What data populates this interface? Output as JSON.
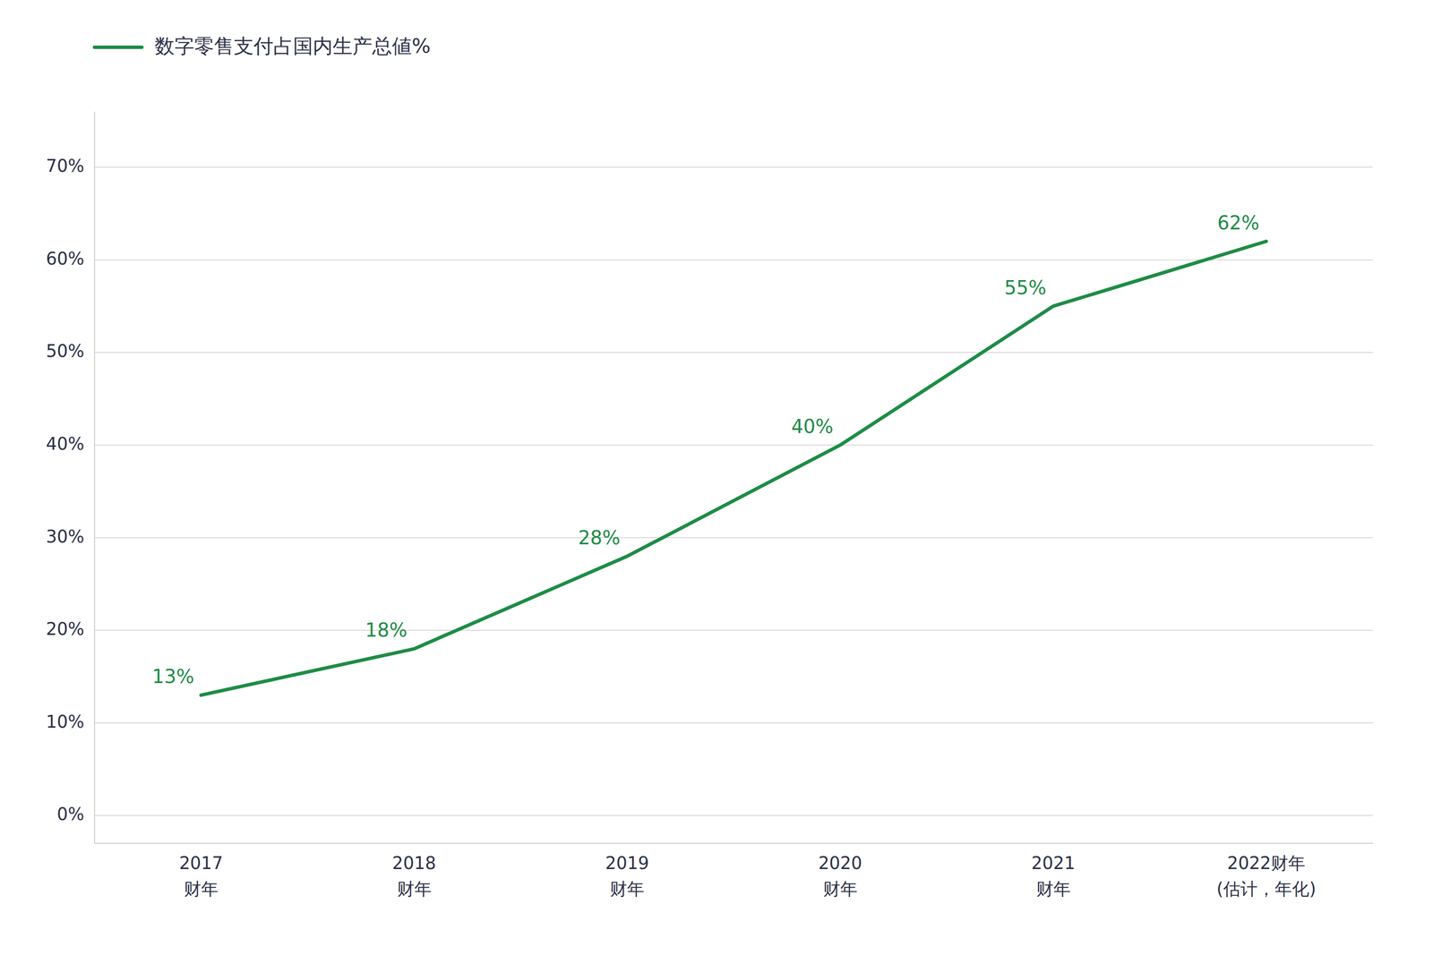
{
  "chart_data": {
    "type": "line",
    "categories": [
      "2017\n财年",
      "2018\n财年",
      "2019\n财年",
      "2020\n财年",
      "2021\n财年",
      "2022财年\n(估计，年化)"
    ],
    "series": [
      {
        "name": "数字零售支付占国内生产总値%",
        "color": "#1e8c46",
        "values": [
          13,
          18,
          28,
          40,
          55,
          62
        ],
        "value_labels": [
          "13%",
          "18%",
          "28%",
          "40%",
          "55%",
          "62%"
        ]
      }
    ],
    "ylim": [
      -3,
      76
    ],
    "yticks": [
      {
        "value": 0,
        "label": "0%"
      },
      {
        "value": 10,
        "label": "10%"
      },
      {
        "value": 20,
        "label": "20%"
      },
      {
        "value": 30,
        "label": "30%"
      },
      {
        "value": 40,
        "label": "40%"
      },
      {
        "value": 50,
        "label": "50%"
      },
      {
        "value": 60,
        "label": "60%"
      },
      {
        "value": 70,
        "label": "70%"
      }
    ],
    "grid": true,
    "legend": "upper left",
    "data_labels": true
  }
}
